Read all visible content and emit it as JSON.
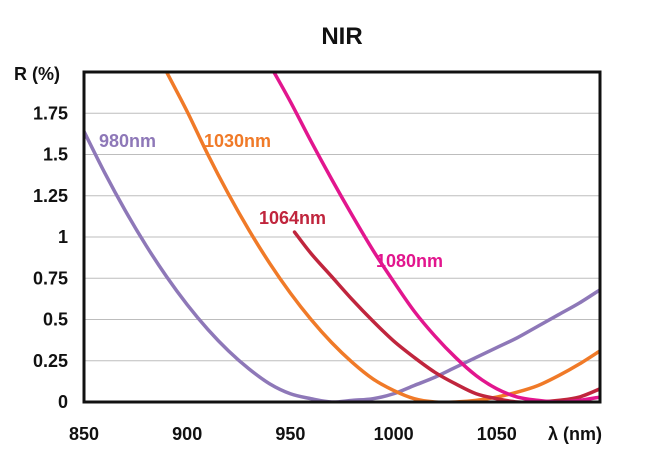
{
  "chart_data": {
    "type": "line",
    "title": "NIR",
    "xlabel": "λ (nm)",
    "ylabel": "R (%)",
    "xlim": [
      850,
      1100
    ],
    "ylim": [
      0,
      2
    ],
    "x_ticks": [
      "850",
      "900",
      "950",
      "1000",
      "1050"
    ],
    "y_ticks": [
      "0",
      "0.25",
      "0.5",
      "0.75",
      "1",
      "1.25",
      "1.5",
      "1.75"
    ],
    "grid": true,
    "series": [
      {
        "name": "980nm",
        "color": "#8e78b8",
        "x": [
          850,
          860,
          870,
          880,
          890,
          900,
          910,
          920,
          930,
          940,
          950,
          960,
          970,
          980,
          990,
          1000,
          1010,
          1020,
          1030,
          1040,
          1050,
          1060,
          1070,
          1080,
          1090,
          1100
        ],
        "y": [
          1.64,
          1.39,
          1.16,
          0.95,
          0.76,
          0.59,
          0.44,
          0.31,
          0.2,
          0.11,
          0.05,
          0.02,
          0.0,
          0.01,
          0.02,
          0.05,
          0.1,
          0.15,
          0.21,
          0.27,
          0.33,
          0.39,
          0.46,
          0.53,
          0.6,
          0.68
        ]
      },
      {
        "name": "1030nm",
        "color": "#f07a28",
        "x": [
          890,
          900,
          910,
          920,
          930,
          940,
          950,
          960,
          970,
          980,
          990,
          1000,
          1010,
          1020,
          1030,
          1040,
          1050,
          1060,
          1070,
          1080,
          1090,
          1100
        ],
        "y": [
          2.0,
          1.76,
          1.5,
          1.26,
          1.04,
          0.84,
          0.66,
          0.5,
          0.36,
          0.24,
          0.14,
          0.07,
          0.02,
          0.0,
          0.0,
          0.01,
          0.03,
          0.06,
          0.1,
          0.16,
          0.23,
          0.31
        ]
      },
      {
        "name": "1064nm",
        "color": "#c0253d",
        "x": [
          952,
          960,
          970,
          980,
          990,
          1000,
          1010,
          1020,
          1030,
          1040,
          1050,
          1060,
          1070,
          1080,
          1090,
          1100
        ],
        "y": [
          1.03,
          0.9,
          0.76,
          0.62,
          0.49,
          0.37,
          0.27,
          0.18,
          0.11,
          0.05,
          0.02,
          0.0,
          0.0,
          0.01,
          0.03,
          0.08
        ]
      },
      {
        "name": "1080nm",
        "color": "#e2168e",
        "x": [
          942,
          950,
          960,
          970,
          980,
          990,
          1000,
          1010,
          1020,
          1030,
          1040,
          1050,
          1060,
          1070,
          1080,
          1090,
          1100
        ],
        "y": [
          2.0,
          1.82,
          1.58,
          1.35,
          1.13,
          0.92,
          0.73,
          0.55,
          0.4,
          0.27,
          0.16,
          0.08,
          0.03,
          0.01,
          0.0,
          0.01,
          0.03
        ]
      }
    ]
  }
}
